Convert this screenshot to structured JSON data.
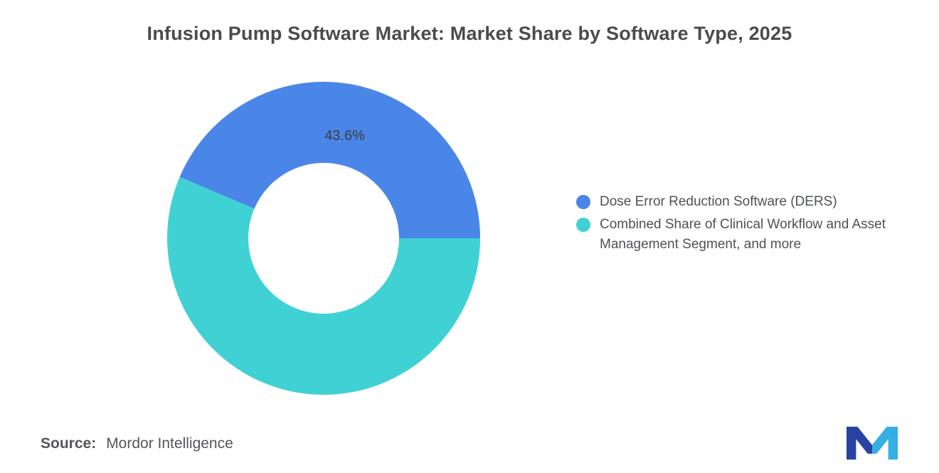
{
  "title": "Infusion Pump Software Market: Market Share by Software Type, 2025",
  "chart_data": {
    "type": "pie",
    "subtype": "donut",
    "title": "Infusion Pump Software Market: Market Share by Software Type, 2025",
    "labels": [
      "Dose Error Reduction Software (DERS)",
      "Combined Share of Clinical Workflow and Asset Management Segment, and more"
    ],
    "values": [
      43.6,
      56.4
    ],
    "colors": [
      "#4A86E8",
      "#40D1D4"
    ],
    "data_labels": [
      "43.6%",
      ""
    ],
    "start_angle_deg": 0,
    "direction": "counterclockwise",
    "inner_radius_ratio": 0.48,
    "legend_position": "right"
  },
  "legend": {
    "items": [
      {
        "label": "Dose Error Reduction Software (DERS)",
        "color": "#4A86E8"
      },
      {
        "label": "Combined Share of Clinical Workflow and Asset Management Segment, and more",
        "color": "#40D1D4"
      }
    ]
  },
  "annotations": {
    "slice_label": "43.6%"
  },
  "source": {
    "label": "Source:",
    "value": "Mordor Intelligence"
  },
  "logo": {
    "name": "mordor-intelligence-logo",
    "color_dark": "#2843A1",
    "color_light": "#35AEE3"
  }
}
